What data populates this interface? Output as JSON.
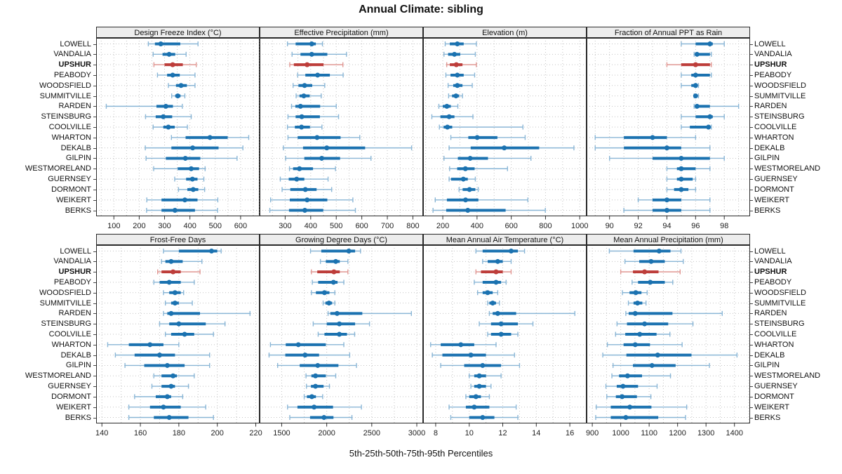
{
  "title": "Annual Climate: sibling",
  "caption": "5th-25th-50th-75th-95th Percentiles",
  "highlight_site": "UPSHUR",
  "percentiles": [
    5,
    25,
    50,
    75,
    95
  ],
  "sites": [
    "LOWELL",
    "VANDALIA",
    "UPSHUR",
    "PEABODY",
    "WOODSFIELD",
    "SUMMITVILLE",
    "RARDEN",
    "STEINSBURG",
    "COOLVILLE",
    "WHARTON",
    "DEKALB",
    "GILPIN",
    "WESTMORELAND",
    "GUERNSEY",
    "DORMONT",
    "WEIKERT",
    "BERKS"
  ],
  "colors": {
    "normal": "#1b72b0",
    "normal_light": "#8ab6d6",
    "highlight": "#bd3d3a",
    "highlight_light": "#e09692",
    "grid": "#c3c3c3",
    "border": "#2a2a2a",
    "strip_bg": "#ededed"
  },
  "chart_data": [
    {
      "type": "scatter",
      "subtype": "percentile-intervals",
      "title": "Design Freeze Index (°C)",
      "xlim": [
        30,
        675
      ],
      "ticks": [
        100,
        200,
        300,
        400,
        500,
        600
      ],
      "grid_step": 50,
      "values": [
        [
          236,
          262,
          285,
          362,
          432
        ],
        [
          255,
          292,
          318,
          342,
          385
        ],
        [
          258,
          300,
          332,
          372,
          425
        ],
        [
          272,
          310,
          332,
          360,
          420
        ],
        [
          315,
          345,
          365,
          388,
          420
        ],
        [
          328,
          342,
          352,
          363,
          380
        ],
        [
          70,
          268,
          305,
          333,
          370
        ],
        [
          225,
          265,
          295,
          330,
          405
        ],
        [
          255,
          295,
          315,
          340,
          390
        ],
        [
          327,
          383,
          479,
          549,
          632
        ],
        [
          224,
          327,
          411,
          513,
          609
        ],
        [
          227,
          305,
          382,
          441,
          586
        ],
        [
          257,
          352,
          405,
          436,
          460
        ],
        [
          340,
          385,
          410,
          430,
          455
        ],
        [
          355,
          390,
          413,
          433,
          458
        ],
        [
          230,
          288,
          380,
          430,
          510
        ],
        [
          229,
          288,
          341,
          420,
          509
        ]
      ]
    },
    {
      "type": "scatter",
      "subtype": "percentile-intervals",
      "title": "Effective Precipitation (mm)",
      "xlim": [
        200,
        840
      ],
      "ticks": [
        300,
        400,
        500,
        600,
        700,
        800
      ],
      "grid_step": 50,
      "values": [
        [
          309,
          341,
          404,
          420,
          446
        ],
        [
          327,
          360,
          404,
          465,
          540
        ],
        [
          318,
          334,
          386,
          450,
          526
        ],
        [
          349,
          379,
          427,
          475,
          527
        ],
        [
          331,
          352,
          376,
          406,
          455
        ],
        [
          343,
          356,
          373,
          396,
          441
        ],
        [
          325,
          340,
          360,
          437,
          500
        ],
        [
          311,
          341,
          365,
          436,
          509
        ],
        [
          309,
          338,
          364,
          397,
          444
        ],
        [
          311,
          349,
          425,
          517,
          592
        ],
        [
          293,
          370,
          463,
          613,
          795
        ],
        [
          302,
          375,
          443,
          515,
          636
        ],
        [
          317,
          331,
          356,
          409,
          497
        ],
        [
          281,
          314,
          345,
          375,
          468
        ],
        [
          288,
          320,
          379,
          423,
          482
        ],
        [
          243,
          318,
          386,
          465,
          565
        ],
        [
          240,
          315,
          377,
          449,
          575
        ]
      ]
    },
    {
      "type": "scatter",
      "subtype": "percentile-intervals",
      "title": "Elevation (m)",
      "xlim": [
        85,
        1040
      ],
      "ticks": [
        200,
        400,
        600,
        800,
        1000
      ],
      "grid_step": 100,
      "values": [
        [
          214,
          241,
          285,
          322,
          396
        ],
        [
          207,
          231,
          268,
          302,
          390
        ],
        [
          223,
          241,
          279,
          315,
          396
        ],
        [
          218,
          245,
          285,
          322,
          386
        ],
        [
          231,
          261,
          285,
          315,
          372
        ],
        [
          234,
          254,
          277,
          295,
          315
        ],
        [
          177,
          200,
          224,
          247,
          288
        ],
        [
          136,
          186,
          237,
          268,
          376
        ],
        [
          180,
          205,
          227,
          255,
          668
        ],
        [
          247,
          349,
          401,
          519,
          681
        ],
        [
          237,
          363,
          559,
          763,
          966
        ],
        [
          207,
          288,
          360,
          464,
          715
        ],
        [
          240,
          284,
          332,
          386,
          578
        ],
        [
          237,
          248,
          320,
          346,
          390
        ],
        [
          295,
          316,
          356,
          390,
          407
        ],
        [
          156,
          224,
          333,
          408,
          697
        ],
        [
          143,
          220,
          346,
          567,
          799
        ]
      ]
    },
    {
      "type": "scatter",
      "subtype": "percentile-intervals",
      "title": "Fraction of Annual PPT as Rain",
      "xlim": [
        88.4,
        99.8
      ],
      "ticks": [
        90,
        92,
        94,
        96,
        98
      ],
      "grid_step": 1,
      "values": [
        [
          95,
          96,
          97,
          97.2,
          98
        ],
        [
          95.9,
          96,
          96.1,
          97,
          97.1
        ],
        [
          94,
          95,
          96,
          97,
          97.1
        ],
        [
          95,
          95.7,
          96,
          97,
          97.1
        ],
        [
          95,
          95.7,
          96,
          96.1,
          96.2
        ],
        [
          95.9,
          96,
          96,
          96.1,
          96.2
        ],
        [
          95.9,
          96,
          96.1,
          97,
          99
        ],
        [
          95,
          96,
          97,
          97.2,
          98
        ],
        [
          95,
          95.6,
          96.9,
          97,
          97.1
        ],
        [
          89,
          91,
          93,
          94,
          96
        ],
        [
          89,
          91,
          94,
          95,
          97
        ],
        [
          90,
          93,
          95,
          97,
          98
        ],
        [
          94,
          94.7,
          95,
          96,
          97
        ],
        [
          94,
          94.7,
          95,
          95.8,
          96
        ],
        [
          94,
          94.5,
          95,
          95.5,
          96
        ],
        [
          92,
          93,
          94,
          95,
          97
        ],
        [
          91,
          93,
          94,
          95,
          97
        ]
      ]
    },
    {
      "type": "scatter",
      "subtype": "percentile-intervals",
      "title": "Frost-Free Days",
      "xlim": [
        137,
        222
      ],
      "ticks": [
        140,
        160,
        180,
        200,
        220
      ],
      "grid_step": 10,
      "values": [
        [
          172,
          180,
          197,
          200,
          202
        ],
        [
          171,
          173,
          176,
          182,
          192
        ],
        [
          169,
          171,
          177,
          181,
          191
        ],
        [
          167,
          170,
          175,
          181,
          188
        ],
        [
          172,
          175,
          178,
          181,
          182.5
        ],
        [
          173,
          176,
          178,
          180,
          187
        ],
        [
          172,
          174,
          176,
          191,
          217
        ],
        [
          170,
          175,
          180,
          194,
          204
        ],
        [
          173,
          176,
          183,
          188,
          198
        ],
        [
          143,
          154,
          165,
          172,
          180
        ],
        [
          147,
          157,
          170,
          178,
          196
        ],
        [
          152,
          162,
          174,
          183,
          196
        ],
        [
          167,
          171,
          177,
          179,
          188
        ],
        [
          166,
          171,
          176,
          178,
          185
        ],
        [
          157,
          168,
          174,
          176,
          182
        ],
        [
          154,
          165,
          172,
          181,
          194
        ],
        [
          154,
          167,
          175,
          185,
          198
        ]
      ]
    },
    {
      "type": "scatter",
      "subtype": "percentile-intervals",
      "title": "Growing Degree Days (°C)",
      "xlim": [
        1255,
        3070
      ],
      "ticks": [
        1500,
        2000,
        2500,
        3000
      ],
      "grid_step": 250,
      "values": [
        [
          1820,
          1940,
          2245,
          2315,
          2375
        ],
        [
          1930,
          1990,
          2100,
          2145,
          2235
        ],
        [
          1830,
          1895,
          2080,
          2145,
          2235
        ],
        [
          1840,
          1905,
          2075,
          2120,
          2190
        ],
        [
          1830,
          1880,
          1975,
          2030,
          2090
        ],
        [
          1960,
          1985,
          2025,
          2060,
          2090
        ],
        [
          2015,
          2040,
          2115,
          2395,
          2940
        ],
        [
          1850,
          2000,
          2140,
          2315,
          2475
        ],
        [
          1905,
          1975,
          2140,
          2225,
          2310
        ],
        [
          1375,
          1545,
          1685,
          1990,
          2190
        ],
        [
          1360,
          1540,
          1760,
          1915,
          2255
        ],
        [
          1455,
          1700,
          1900,
          2130,
          2330
        ],
        [
          1770,
          1830,
          1875,
          1990,
          2100
        ],
        [
          1775,
          1825,
          1875,
          1965,
          2030
        ],
        [
          1750,
          1780,
          1835,
          1880,
          1955
        ],
        [
          1565,
          1675,
          1860,
          2070,
          2385
        ],
        [
          1590,
          1815,
          1970,
          2075,
          2280
        ]
      ]
    },
    {
      "type": "scatter",
      "subtype": "percentile-intervals",
      "title": "Mean Annual Air Temperature (°C)",
      "xlim": [
        7.25,
        17
      ],
      "ticks": [
        8,
        10,
        12,
        14,
        16
      ],
      "grid_step": 1,
      "values": [
        [
          10.4,
          10.8,
          12.5,
          12.9,
          13.3
        ],
        [
          10.8,
          11.1,
          11.7,
          12.0,
          12.5
        ],
        [
          10.4,
          10.7,
          11.6,
          12.0,
          12.5
        ],
        [
          10.3,
          10.8,
          11.6,
          11.9,
          12.2
        ],
        [
          10.5,
          10.8,
          11.1,
          11.4,
          11.7
        ],
        [
          11.1,
          11.2,
          11.4,
          11.6,
          11.8
        ],
        [
          11.2,
          11.4,
          11.7,
          12.8,
          16.3
        ],
        [
          10.6,
          11.3,
          11.9,
          12.9,
          13.8
        ],
        [
          11.1,
          11.3,
          11.9,
          12.5,
          12.9
        ],
        [
          7.7,
          8.3,
          9.5,
          10.3,
          11.6
        ],
        [
          7.8,
          8.4,
          10.1,
          11.0,
          12.7
        ],
        [
          8.3,
          9.7,
          10.8,
          11.9,
          13.0
        ],
        [
          10.0,
          10.3,
          10.6,
          11.0,
          11.9
        ],
        [
          10.1,
          10.3,
          10.6,
          11.0,
          11.3
        ],
        [
          9.8,
          10.0,
          10.4,
          10.7,
          11.2
        ],
        [
          8.8,
          9.8,
          10.3,
          11.2,
          12.8
        ],
        [
          8.9,
          10.0,
          10.8,
          11.5,
          12.9
        ]
      ]
    },
    {
      "type": "scatter",
      "subtype": "percentile-intervals",
      "title": "Mean Annual Precipitation (mm)",
      "xlim": [
        880,
        1455
      ],
      "ticks": [
        900,
        1000,
        1100,
        1200,
        1300,
        1400
      ],
      "grid_step": 50,
      "values": [
        [
          960,
          1045,
          1135,
          1175,
          1212
        ],
        [
          1015,
          1065,
          1107,
          1155,
          1220
        ],
        [
          1000,
          1043,
          1084,
          1133,
          1209
        ],
        [
          1040,
          1061,
          1104,
          1155,
          1183
        ],
        [
          1006,
          1031,
          1053,
          1073,
          1093
        ],
        [
          1027,
          1045,
          1059,
          1076,
          1089
        ],
        [
          1018,
          1028,
          1051,
          1182,
          1357
        ],
        [
          987,
          1022,
          1084,
          1167,
          1254
        ],
        [
          982,
          1016,
          1067,
          1126,
          1173
        ],
        [
          953,
          1010,
          1051,
          1103,
          1216
        ],
        [
          937,
          1020,
          1130,
          1249,
          1409
        ],
        [
          973,
          1043,
          1110,
          1193,
          1312
        ],
        [
          969,
          994,
          1024,
          1075,
          1175
        ],
        [
          948,
          986,
          1008,
          1061,
          1128
        ],
        [
          951,
          983,
          1005,
          1057,
          1106
        ],
        [
          914,
          965,
          1032,
          1108,
          1232
        ],
        [
          912,
          965,
          1018,
          1132,
          1228
        ]
      ]
    }
  ]
}
